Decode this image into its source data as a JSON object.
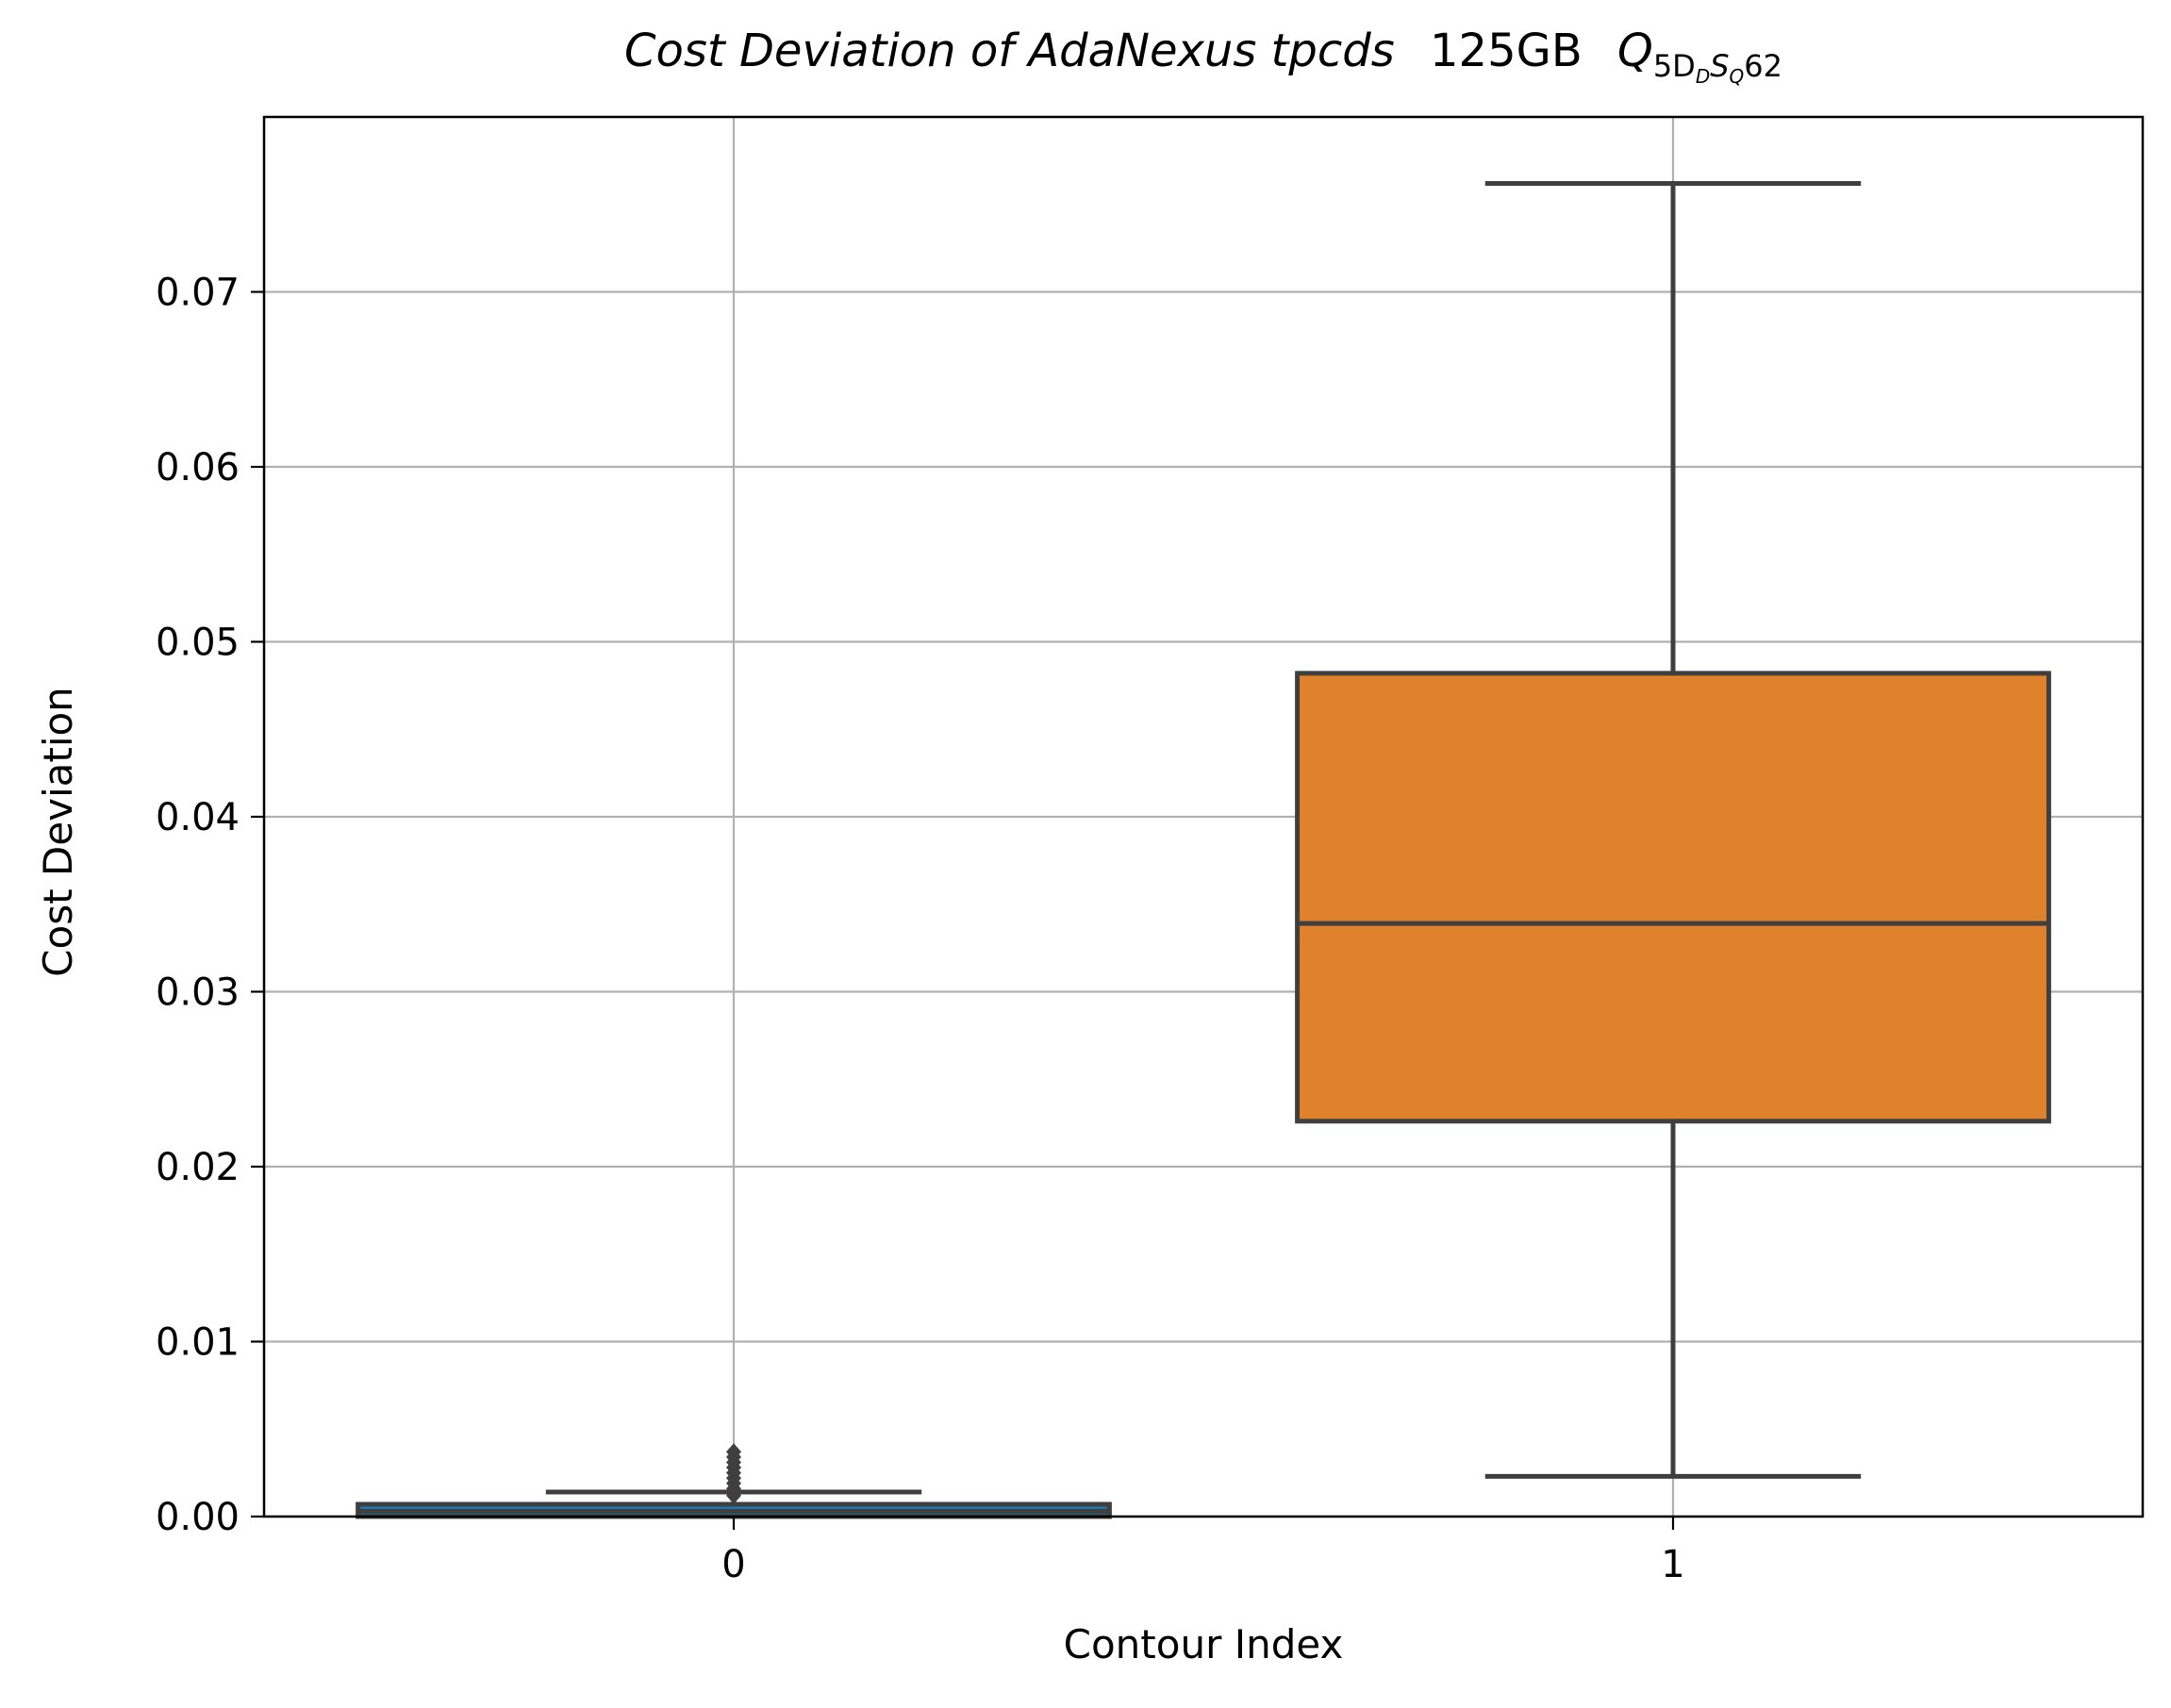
{
  "chart_data": {
    "type": "box",
    "title": {
      "italic": "Cost Deviation of AdaNexus tpcds",
      "size": "125GB",
      "query_base": "Q",
      "query_sub_a": "5D",
      "query_sub_b": "D",
      "query_sub_c": "S",
      "query_sub_d": "Q",
      "query_num": "62"
    },
    "xlabel": "Contour Index",
    "ylabel": "Cost Deviation",
    "ylim": [
      0,
      0.08
    ],
    "yticks": [
      0.0,
      0.01,
      0.02,
      0.03,
      0.04,
      0.05,
      0.06,
      0.07
    ],
    "ytick_labels": [
      "0.00",
      "0.01",
      "0.02",
      "0.03",
      "0.04",
      "0.05",
      "0.06",
      "0.07"
    ],
    "grid": true,
    "categories": [
      "0",
      "1"
    ],
    "boxes": [
      {
        "category": "0",
        "color": "#1f77b4",
        "whisker_low": 0.0,
        "q1": 0.0,
        "median": 0.0003,
        "q3": 0.0007,
        "whisker_high": 0.0014,
        "outliers": [
          0.0012,
          0.0016,
          0.0019,
          0.0022,
          0.0025,
          0.0028,
          0.0031,
          0.0034,
          0.0037
        ]
      },
      {
        "category": "1",
        "color": "#e0812c",
        "whisker_low": 0.0023,
        "q1": 0.0226,
        "median": 0.0339,
        "q3": 0.0482,
        "whisker_high": 0.0762,
        "outliers": []
      }
    ],
    "colors": {
      "edge": "#3f3f3f",
      "grid": "#b0b0b0",
      "axis": "#000000"
    }
  }
}
